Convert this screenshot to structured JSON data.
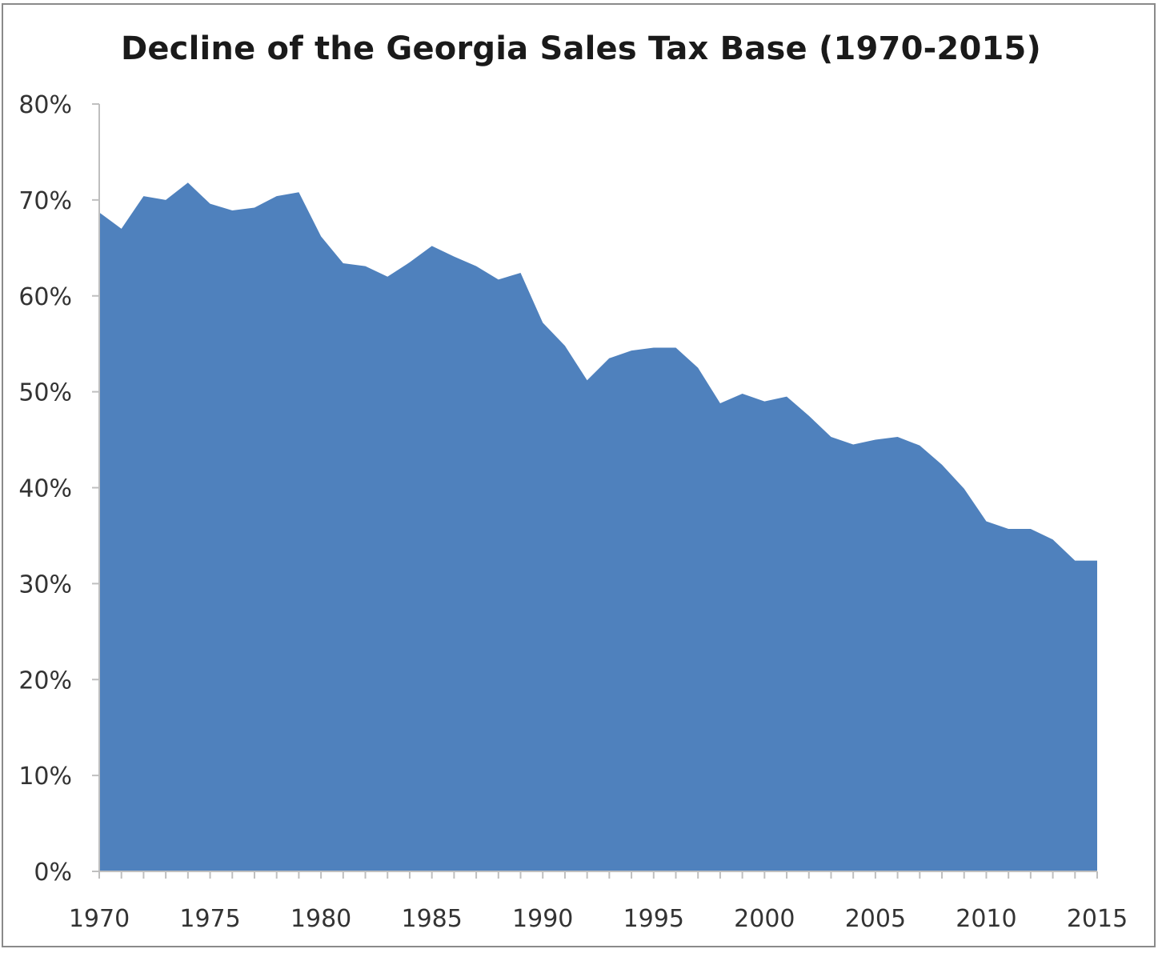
{
  "chart_data": {
    "type": "area",
    "title": "Decline of the Georgia Sales Tax Base (1970-2015)",
    "xlabel": "",
    "ylabel": "",
    "x": [
      1970,
      1971,
      1972,
      1973,
      1974,
      1975,
      1976,
      1977,
      1978,
      1979,
      1980,
      1981,
      1982,
      1983,
      1984,
      1985,
      1986,
      1987,
      1988,
      1989,
      1990,
      1991,
      1992,
      1993,
      1994,
      1995,
      1996,
      1997,
      1998,
      1999,
      2000,
      2001,
      2002,
      2003,
      2004,
      2005,
      2006,
      2007,
      2008,
      2009,
      2010,
      2011,
      2012,
      2013,
      2014,
      2015
    ],
    "values": [
      68.7,
      67.0,
      70.4,
      70.0,
      71.8,
      69.6,
      68.9,
      69.2,
      70.4,
      70.8,
      66.2,
      63.4,
      63.1,
      62.0,
      63.5,
      65.2,
      64.1,
      63.1,
      61.7,
      62.4,
      57.2,
      54.8,
      51.2,
      53.5,
      54.3,
      54.6,
      54.6,
      52.5,
      48.8,
      49.8,
      49.0,
      49.5,
      47.5,
      45.3,
      44.5,
      45.0,
      45.3,
      44.4,
      42.4,
      39.9,
      36.5,
      35.7,
      35.7,
      34.6,
      32.4,
      32.4
    ],
    "ylim": [
      0,
      80
    ],
    "yticks": [
      0,
      10,
      20,
      30,
      40,
      50,
      60,
      70,
      80
    ],
    "ytick_labels": [
      "0%",
      "10%",
      "20%",
      "30%",
      "40%",
      "50%",
      "60%",
      "70%",
      "80%"
    ],
    "xticks": [
      1970,
      1975,
      1980,
      1985,
      1990,
      1995,
      2000,
      2005,
      2010,
      2015
    ],
    "xtick_labels": [
      "1970",
      "1975",
      "1980",
      "1985",
      "1990",
      "1995",
      "2000",
      "2005",
      "2010",
      "2015"
    ],
    "fill_color": "#4f81bd",
    "grid": false,
    "legend": "none"
  }
}
